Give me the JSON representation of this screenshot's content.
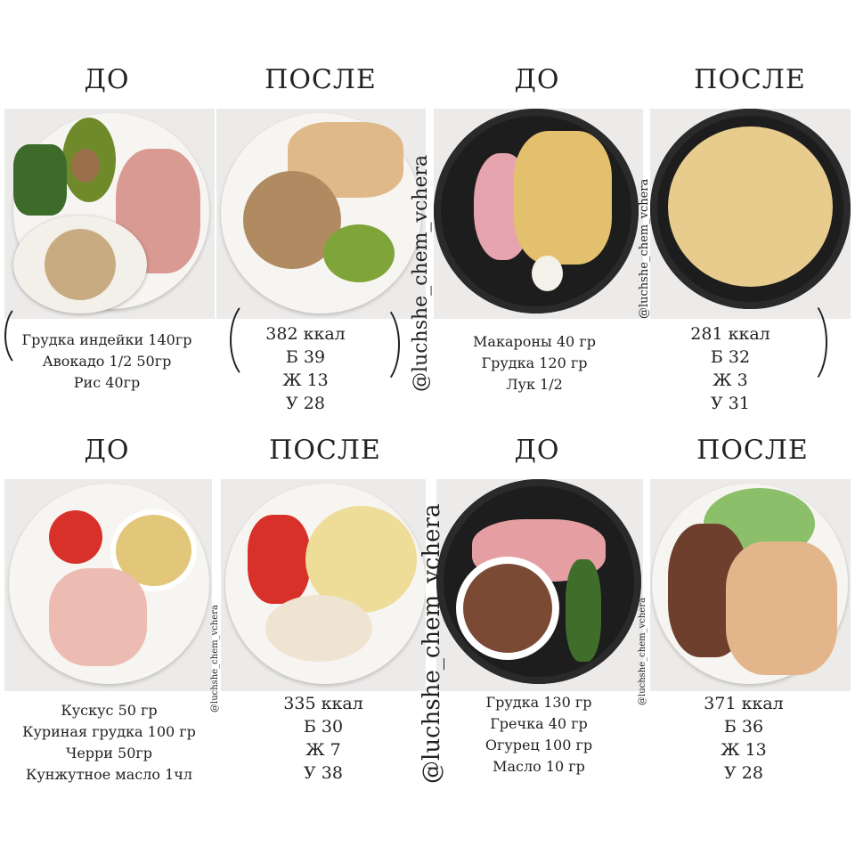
{
  "watermark": "@luchshe_chem_vchera",
  "quadrants": [
    {
      "before_label": "ДО",
      "after_label": "ПОСЛЕ",
      "ingredients": [
        "Грудка индейки 140гр",
        "Авокадо 1/2 50гр",
        "Рис 40гр"
      ],
      "kcal": "382 ккал",
      "protein": "Б 39",
      "fat": "Ж 13",
      "carbs": "У 28"
    },
    {
      "before_label": "ДО",
      "after_label": "ПОСЛЕ",
      "ingredients": [
        "Макароны 40 гр",
        "Грудка 120 гр",
        "Лук 1/2"
      ],
      "kcal": "281 ккал",
      "protein": "Б 32",
      "fat": "Ж 3",
      "carbs": "У 31"
    },
    {
      "before_label": "ДО",
      "after_label": "ПОСЛЕ",
      "ingredients": [
        "Кускус 50 гр",
        "Куриная грудка 100 гр",
        "Черри 50гр",
        "Кунжутное масло 1чл"
      ],
      "kcal": "335 ккал",
      "protein": "Б 30",
      "fat": "Ж 7",
      "carbs": "У 38"
    },
    {
      "before_label": "ДО",
      "after_label": "ПОСЛЕ",
      "ingredients": [
        "Грудка 130 гр",
        "Гречка 40 гр",
        "Огурец 100 гр",
        "Масло 10 гр"
      ],
      "kcal": "371 ккал",
      "protein": "Б 36",
      "fat": "Ж 13",
      "carbs": "У 28"
    }
  ]
}
